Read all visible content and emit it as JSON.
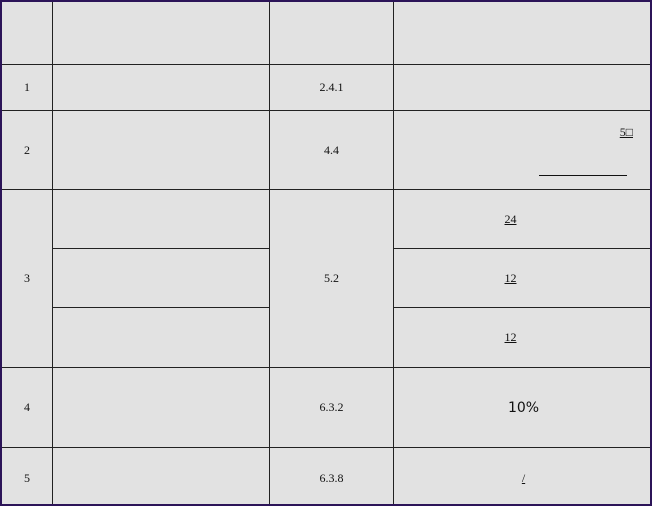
{
  "table": {
    "header": [
      "",
      "",
      "",
      ""
    ],
    "rows": [
      {
        "index": "1",
        "item": "",
        "clause": "2.4.1",
        "requirement": ""
      },
      {
        "index": "2",
        "item": "",
        "clause": "4.4",
        "requirement": "5□"
      },
      {
        "index": "3",
        "clause": "5.2",
        "sub_rows": [
          {
            "item": "",
            "requirement": "24"
          },
          {
            "item": "",
            "requirement": "12"
          },
          {
            "item": "",
            "requirement": "12"
          }
        ]
      },
      {
        "index": "4",
        "item": "",
        "clause": "6.3.2",
        "requirement": "10%"
      },
      {
        "index": "5",
        "item": "",
        "clause": "6.3.8",
        "requirement": "/"
      }
    ]
  }
}
